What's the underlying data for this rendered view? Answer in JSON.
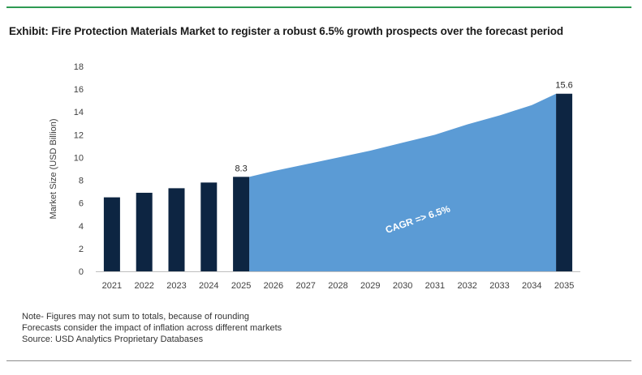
{
  "title": "Exhibit: Fire Protection Materials Market to register a robust 6.5% growth prospects over the forecast period",
  "colors": {
    "bar": "#0d2542",
    "area": "#5b9bd5",
    "top_rule": "#2e9a52",
    "axis": "#bfbfbf"
  },
  "chart_data": {
    "type": "bar",
    "ylabel": "Market Size (USD Billion)",
    "ylim": [
      0,
      18
    ],
    "yticks": [
      0,
      2,
      4,
      6,
      8,
      10,
      12,
      14,
      16,
      18
    ],
    "categories": [
      "2021",
      "2022",
      "2023",
      "2024",
      "2025",
      "2026",
      "2027",
      "2028",
      "2029",
      "2030",
      "2031",
      "2032",
      "2033",
      "2034",
      "2035"
    ],
    "bars": [
      {
        "x": "2021",
        "value": 6.5
      },
      {
        "x": "2022",
        "value": 6.9
      },
      {
        "x": "2023",
        "value": 7.3
      },
      {
        "x": "2024",
        "value": 7.8
      },
      {
        "x": "2025",
        "value": 8.3,
        "label": "8.3"
      },
      {
        "x": "2035",
        "value": 15.6,
        "label": "15.6"
      }
    ],
    "area": {
      "x": [
        "2025",
        "2026",
        "2027",
        "2028",
        "2029",
        "2030",
        "2031",
        "2032",
        "2033",
        "2034",
        "2035"
      ],
      "values": [
        8.3,
        8.8,
        9.4,
        10.0,
        10.6,
        11.3,
        12.0,
        12.9,
        13.7,
        14.6,
        15.6
      ]
    },
    "annotation": "CAGR => 6.5%"
  },
  "notes": [
    "Note- Figures may not sum to totals, because of rounding",
    "Forecasts consider the impact of inflation across different markets",
    "Source: USD Analytics Proprietary Databases"
  ]
}
